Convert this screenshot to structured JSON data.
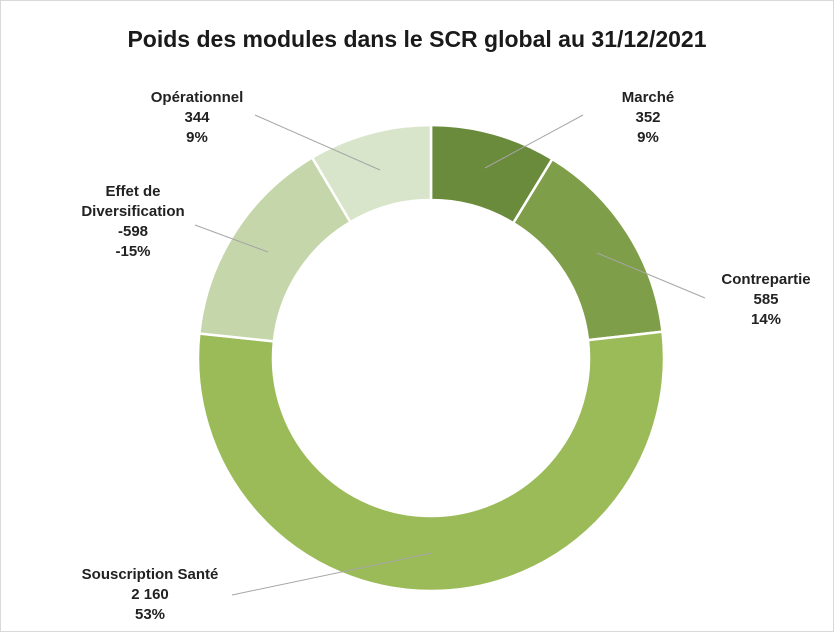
{
  "chart_data": {
    "type": "donut",
    "title": "Poids des modules dans le SCR global au 31/12/2021",
    "categories": [
      "Marché",
      "Contrepartie",
      "Souscription Santé",
      "Effet de Diversification",
      "Opérationnel"
    ],
    "values": [
      352,
      585,
      2160,
      -598,
      344
    ],
    "value_labels": [
      "352",
      "585",
      "2 160",
      "-598",
      "344"
    ],
    "percentages": [
      9,
      14,
      53,
      -15,
      9
    ],
    "percentage_labels": [
      "9%",
      "14%",
      "53%",
      "-15%",
      "9%"
    ],
    "colors": [
      "#6a8a3c",
      "#7f9e4a",
      "#9bbb59",
      "#c5d7aa",
      "#d9e5ca"
    ]
  }
}
